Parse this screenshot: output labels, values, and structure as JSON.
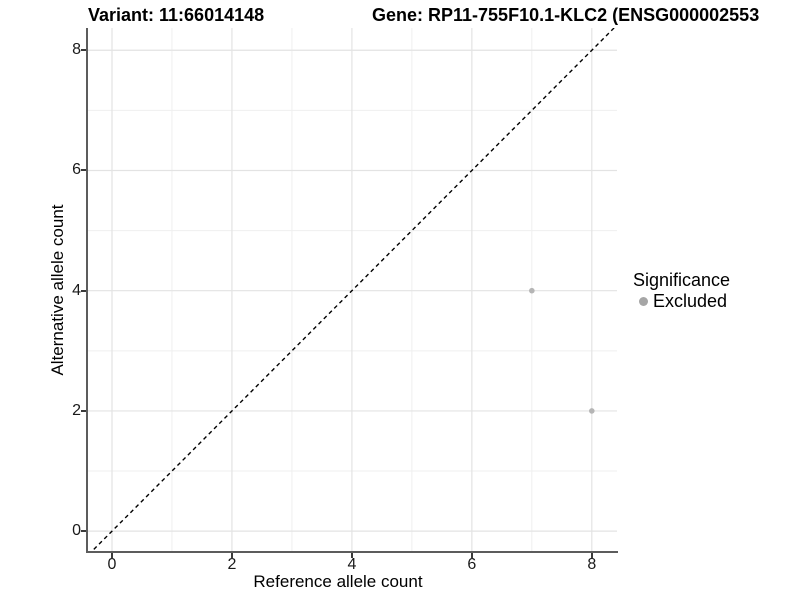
{
  "figure": {
    "title_left": "Variant: 11:66014148",
    "title_right": "Gene: RP11-755F10.1-KLC2 (ENSG000002553",
    "background": "#ffffff"
  },
  "chart_data": {
    "type": "scatter",
    "xlabel": "Reference allele count",
    "ylabel": "Alternative allele count",
    "xlim": [
      -0.4,
      8.42
    ],
    "ylim": [
      -0.33,
      8.37
    ],
    "x_ticks": [
      0,
      2,
      4,
      6,
      8
    ],
    "y_ticks": [
      0,
      2,
      4,
      6,
      8
    ],
    "x_minor_ticks": [
      1,
      3,
      5,
      7
    ],
    "y_minor_ticks": [
      1,
      3,
      5,
      7
    ],
    "grid": true,
    "series": [
      {
        "name": "Excluded",
        "points": [
          {
            "x": 7,
            "y": 4
          },
          {
            "x": 8,
            "y": 2
          }
        ]
      }
    ],
    "reference_line": {
      "slope": 1,
      "intercept": 0,
      "style": "dashed"
    },
    "legend": {
      "title": "Significance",
      "position": "right",
      "items": [
        {
          "label": "Excluded"
        }
      ]
    }
  },
  "colors": {
    "point": "#b5b5b5",
    "legend_key": "#a6a6a6",
    "grid_major": "#e3e3e3",
    "grid_minor": "#efefef",
    "axis_line": "#5c5c5c",
    "reference_line": "#000000"
  }
}
